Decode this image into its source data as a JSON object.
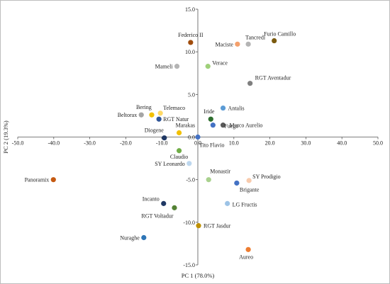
{
  "chart_data": {
    "type": "scatter",
    "title": "",
    "xlabel": "PC 1 (78.0%)",
    "ylabel": "PC 2 (19.3%)",
    "xlim": [
      -50,
      50
    ],
    "ylim": [
      -15,
      15
    ],
    "xticks": [
      "-50.0",
      "-40.0",
      "-30.0",
      "-20.0",
      "-10.0",
      "0.0",
      "10.0",
      "20.0",
      "30.0",
      "40.0",
      "50.0"
    ],
    "yticks": [
      "15.0",
      "10.0",
      "5.0",
      "0.0",
      "-5.0",
      "-10.0",
      "-15.0"
    ],
    "grid": false,
    "legend": "none",
    "points": [
      {
        "label": "Federico II",
        "x": -2.0,
        "y": 11.1,
        "color": "#a04c0c"
      },
      {
        "label": "Tancredi",
        "x": 14.0,
        "y": 10.9,
        "color": "#b4b4b4"
      },
      {
        "label": "Furio Camillo",
        "x": 21.2,
        "y": 11.3,
        "color": "#7b5b10"
      },
      {
        "label": "Maciste",
        "x": 11.0,
        "y": 10.9,
        "color": "#f4a06c"
      },
      {
        "label": "Verace",
        "x": 2.8,
        "y": 8.3,
        "color": "#9fd07a"
      },
      {
        "label": "Mameli",
        "x": -5.8,
        "y": 8.3,
        "color": "#b4b4b4"
      },
      {
        "label": "RGT Aventadur",
        "x": 14.5,
        "y": 6.3,
        "color": "#7f7f7f"
      },
      {
        "label": "Antalis",
        "x": 7.0,
        "y": 3.4,
        "color": "#5b9bd5"
      },
      {
        "label": "Iride",
        "x": 3.6,
        "y": 2.1,
        "color": "#2e6e2e"
      },
      {
        "label": "Marco Aurelio",
        "x": 7.0,
        "y": 1.4,
        "color": "#595959"
      },
      {
        "label": "Fuego",
        "x": 4.2,
        "y": 1.4,
        "color": "#4472c4"
      },
      {
        "label": "Bering",
        "x": -12.8,
        "y": 2.6,
        "color": "#f2c000"
      },
      {
        "label": "Telemaco",
        "x": -10.4,
        "y": 2.8,
        "color": "#ffd966"
      },
      {
        "label": "Beltorax",
        "x": -15.7,
        "y": 2.6,
        "color": "#a5a5a5"
      },
      {
        "label": "RGT Natur",
        "x": -10.8,
        "y": 2.1,
        "color": "#2f5597"
      },
      {
        "label": "Marakas",
        "x": -5.2,
        "y": 0.5,
        "color": "#f2c000"
      },
      {
        "label": "Diogene",
        "x": -9.3,
        "y": -0.1,
        "color": "#1f3864"
      },
      {
        "label": "Tito Flavio",
        "x": 0.0,
        "y": 0.0,
        "color": "#4472c4"
      },
      {
        "label": "Claudio",
        "x": -5.2,
        "y": -1.6,
        "color": "#70ad47"
      },
      {
        "label": "SY Leonardo",
        "x": -2.4,
        "y": -3.1,
        "color": "#bdd7ee"
      },
      {
        "label": "Panoramix",
        "x": -40.1,
        "y": -5.0,
        "color": "#c55a11"
      },
      {
        "label": "Monastir",
        "x": 3.0,
        "y": -5.0,
        "color": "#a9d18e"
      },
      {
        "label": "SY Prodigio",
        "x": 14.2,
        "y": -5.1,
        "color": "#f8cbad"
      },
      {
        "label": "Brigante",
        "x": 10.8,
        "y": -5.4,
        "color": "#4472c4"
      },
      {
        "label": "LG Fructis",
        "x": 8.2,
        "y": -7.8,
        "color": "#9dc3e6"
      },
      {
        "label": "Incanto",
        "x": -9.5,
        "y": -7.8,
        "color": "#1f3864"
      },
      {
        "label": "RGT Voltadur",
        "x": -6.5,
        "y": -8.3,
        "color": "#548235"
      },
      {
        "label": "RGT Jasdur",
        "x": 0.2,
        "y": -10.4,
        "color": "#bf9000"
      },
      {
        "label": "Nuraghe",
        "x": -15.0,
        "y": -11.8,
        "color": "#2e75b6"
      },
      {
        "label": "Aureo",
        "x": 14.0,
        "y": -13.2,
        "color": "#ed7d31"
      }
    ]
  }
}
